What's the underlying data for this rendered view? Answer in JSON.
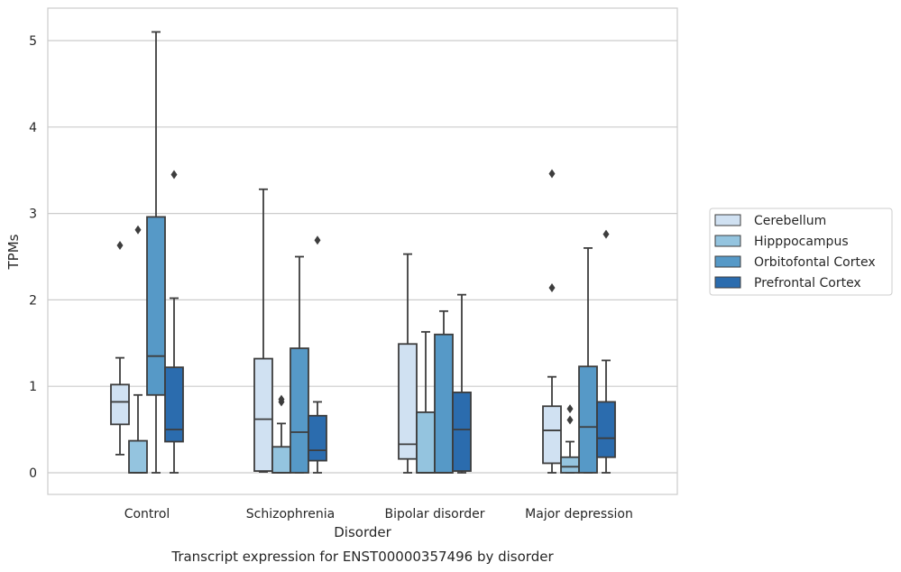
{
  "chart_data": {
    "type": "box",
    "title": "",
    "xlabel": "Disorder",
    "ylabel": "TPMs",
    "caption": "Transcript expression for ENST00000357496 by disorder",
    "ylim": [
      -0.25,
      5.38
    ],
    "yticks": [
      "0",
      "1",
      "2",
      "3",
      "4",
      "5"
    ],
    "grid": "horizontal",
    "legend_position": "right",
    "categories": [
      "Control",
      "Schizophrenia",
      "Bipolar disorder",
      "Major depression"
    ],
    "series": [
      {
        "name": "Cerebellum",
        "color": "#d0e1f2",
        "boxes": [
          {
            "whislo": 0.21,
            "q1": 0.56,
            "med": 0.82,
            "q3": 1.02,
            "whishi": 1.33,
            "fliers": [
              2.63
            ]
          },
          {
            "whislo": 0.01,
            "q1": 0.02,
            "med": 0.62,
            "q3": 1.32,
            "whishi": 3.28,
            "fliers": []
          },
          {
            "whislo": 0.0,
            "q1": 0.16,
            "med": 0.33,
            "q3": 1.49,
            "whishi": 2.53,
            "fliers": []
          },
          {
            "whislo": 0.0,
            "q1": 0.11,
            "med": 0.49,
            "q3": 0.77,
            "whishi": 1.11,
            "fliers": [
              2.14,
              3.46
            ]
          }
        ]
      },
      {
        "name": "Hipppocampus",
        "color": "#94c4df",
        "boxes": [
          {
            "whislo": 0.0,
            "q1": 0.0,
            "med": 0.0,
            "q3": 0.37,
            "whishi": 0.9,
            "fliers": [
              2.81
            ]
          },
          {
            "whislo": 0.0,
            "q1": 0.0,
            "med": 0.0,
            "q3": 0.3,
            "whishi": 0.57,
            "fliers": [
              0.82,
              0.85
            ]
          },
          {
            "whislo": 0.0,
            "q1": 0.0,
            "med": 0.0,
            "q3": 0.7,
            "whishi": 1.63,
            "fliers": []
          },
          {
            "whislo": 0.0,
            "q1": 0.0,
            "med": 0.07,
            "q3": 0.18,
            "whishi": 0.36,
            "fliers": [
              0.61,
              0.74
            ]
          }
        ]
      },
      {
        "name": "Orbitofontal Cortex",
        "color": "#5699c7",
        "boxes": [
          {
            "whislo": 0.0,
            "q1": 0.9,
            "med": 1.35,
            "q3": 2.96,
            "whishi": 5.1,
            "fliers": []
          },
          {
            "whislo": 0.0,
            "q1": 0.0,
            "med": 0.47,
            "q3": 1.44,
            "whishi": 2.5,
            "fliers": []
          },
          {
            "whislo": 0.0,
            "q1": 0.0,
            "med": 0.0,
            "q3": 1.6,
            "whishi": 1.87,
            "fliers": []
          },
          {
            "whislo": 0.0,
            "q1": 0.0,
            "med": 0.53,
            "q3": 1.23,
            "whishi": 2.6,
            "fliers": []
          }
        ]
      },
      {
        "name": "Prefrontal Cortex",
        "color": "#2b6cae",
        "boxes": [
          {
            "whislo": 0.0,
            "q1": 0.36,
            "med": 0.5,
            "q3": 1.22,
            "whishi": 2.02,
            "fliers": [
              3.45
            ]
          },
          {
            "whislo": 0.0,
            "q1": 0.14,
            "med": 0.26,
            "q3": 0.66,
            "whishi": 0.82,
            "fliers": [
              2.69
            ]
          },
          {
            "whislo": 0.0,
            "q1": 0.02,
            "med": 0.5,
            "q3": 0.93,
            "whishi": 2.06,
            "fliers": []
          },
          {
            "whislo": 0.0,
            "q1": 0.18,
            "med": 0.4,
            "q3": 0.82,
            "whishi": 1.3,
            "fliers": [
              2.76
            ]
          }
        ]
      }
    ]
  }
}
